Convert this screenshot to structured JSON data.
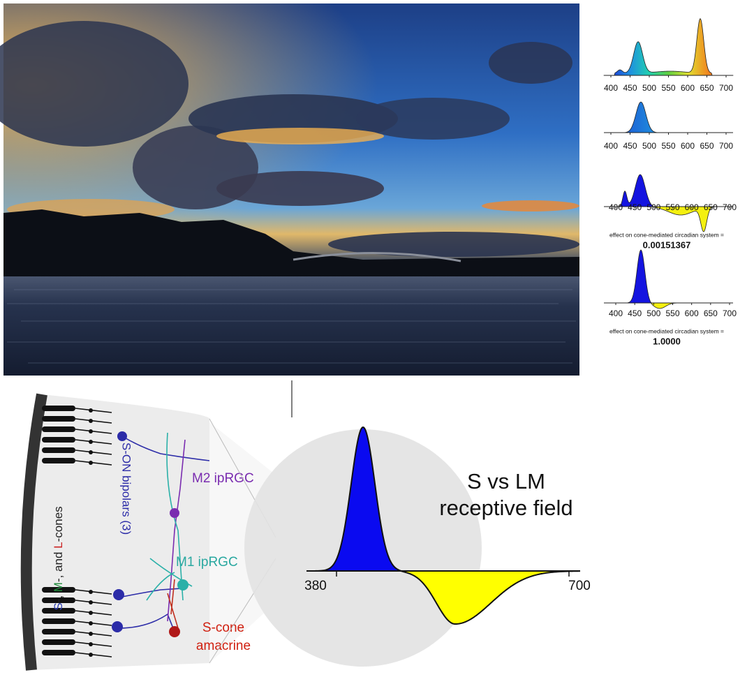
{
  "spectra": [
    {
      "xticks": [
        400,
        450,
        500,
        550,
        600,
        650,
        700
      ]
    },
    {
      "xticks": [
        400,
        450,
        500,
        550,
        600,
        650,
        700
      ]
    },
    {
      "xticks": [
        400,
        450,
        500,
        550,
        600,
        650,
        700
      ],
      "caption": "effect on cone-mediated circadian system =",
      "result": "0.00151367"
    },
    {
      "xticks": [
        400,
        450,
        500,
        550,
        600,
        650,
        700
      ],
      "caption": "effect on cone-mediated circadian system =",
      "result": "1.0000"
    }
  ],
  "receptive_field": {
    "title": [
      "S vs LM",
      "receptive field"
    ],
    "xticks": [
      380,
      700
    ]
  },
  "retina": {
    "cones_label": [
      {
        "text": "S",
        "color": "#2a3bb0"
      },
      {
        "text": "-, ",
        "color": "#222222"
      },
      {
        "text": "M",
        "color": "#1e8a3a"
      },
      {
        "text": "-, and ",
        "color": "#222222"
      },
      {
        "text": "L",
        "color": "#cc2222"
      },
      {
        "text": "-cones",
        "color": "#222222"
      }
    ],
    "bipolars": "S-ON bipolars (3)",
    "m2": "M2 ipRGC",
    "m1": "M1 ipRGC",
    "amacrine": [
      "S-cone",
      "amacrine"
    ]
  }
}
